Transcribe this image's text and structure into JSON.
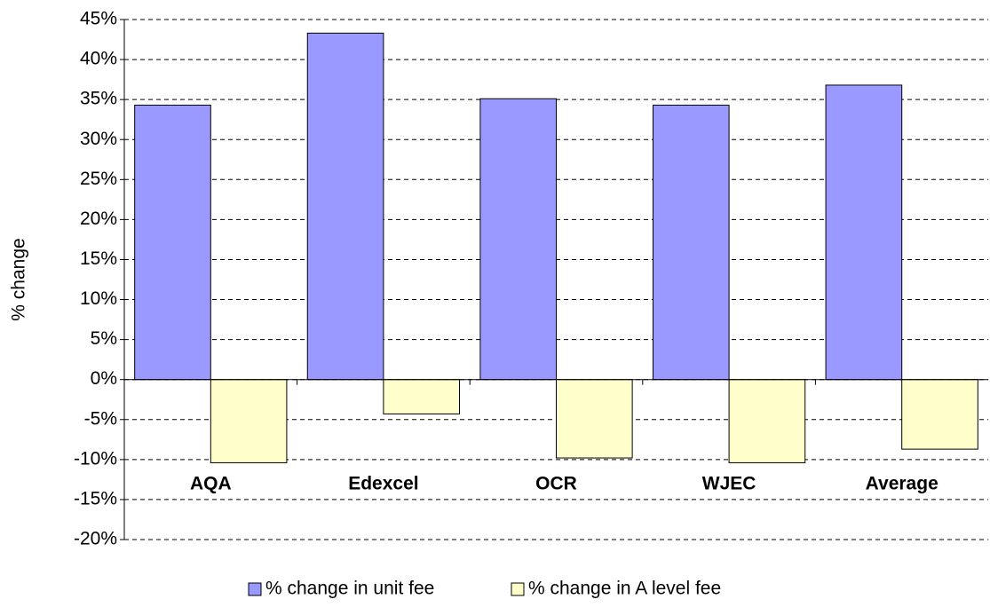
{
  "chart_data": {
    "type": "bar",
    "y_label": "% change",
    "categories": [
      "AQA",
      "Edexcel",
      "OCR",
      "WJEC",
      "Average"
    ],
    "series": [
      {
        "name": "% change in unit fee",
        "color": "#9999ff",
        "values": [
          34.3,
          43.3,
          35.1,
          34.3,
          36.8
        ]
      },
      {
        "name": "% change in A level fee",
        "color": "#ffffcc",
        "values": [
          -10.4,
          -4.3,
          -9.8,
          -10.4,
          -8.7
        ]
      }
    ],
    "ylim": [
      -20,
      45
    ],
    "yticks": [
      {
        "value": -20,
        "label": "-20%"
      },
      {
        "value": -15,
        "label": "-15%"
      },
      {
        "value": -10,
        "label": "-10%"
      },
      {
        "value": -5,
        "label": "-5%"
      },
      {
        "value": 0,
        "label": "0%"
      },
      {
        "value": 5,
        "label": "5%"
      },
      {
        "value": 10,
        "label": "10%"
      },
      {
        "value": 15,
        "label": "15%"
      },
      {
        "value": 20,
        "label": "20%"
      },
      {
        "value": 25,
        "label": "25%"
      },
      {
        "value": 30,
        "label": "30%"
      },
      {
        "value": 35,
        "label": "35%"
      },
      {
        "value": 40,
        "label": "40%"
      },
      {
        "value": 45,
        "label": "45%"
      }
    ],
    "grid": true,
    "legend": "bottom"
  }
}
